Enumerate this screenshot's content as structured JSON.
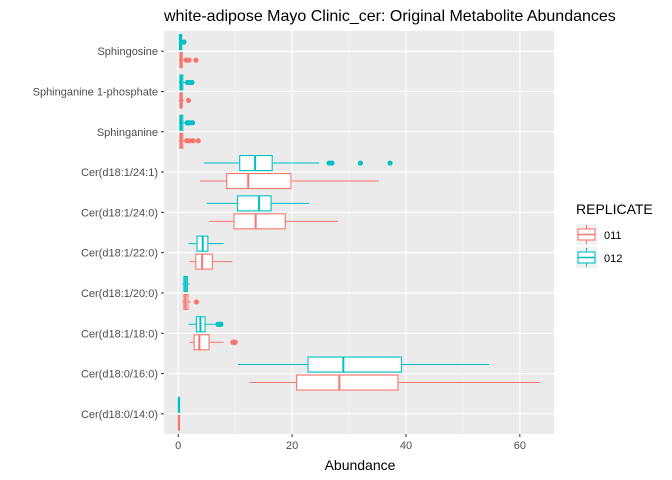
{
  "chart_data": {
    "type": "boxplot",
    "orientation": "horizontal",
    "title": "white-adipose Mayo Clinic_cer: Original Metabolite Abundances",
    "xlabel": "Abundance",
    "xlim": [
      -2.5,
      66
    ],
    "x_ticks": [
      0,
      20,
      40,
      60
    ],
    "x_tick_labels": [
      "0",
      "20",
      "40",
      "60"
    ],
    "grid": true,
    "legend_position": "right",
    "legend_title": "REPLICATE",
    "categories": [
      "Sphingosine",
      "Sphinganine 1-phosphate",
      "Sphinganine",
      "Cer(d18:1/24:1)",
      "Cer(d18:1/24:0)",
      "Cer(d18:1/22:0)",
      "Cer(d18:1/20:0)",
      "Cer(d18:1/18:0)",
      "Cer(d18:0/16:0)",
      "Cer(d18:0/14:0)"
    ],
    "series": [
      {
        "name": "011",
        "color": "#F8766D",
        "boxes": [
          {
            "min": 0.1,
            "q1": 0.3,
            "median": 0.5,
            "q3": 0.7,
            "max": 1.0,
            "outliers": [
              1.4,
              1.9,
              3.1
            ]
          },
          {
            "min": 0.1,
            "q1": 0.3,
            "median": 0.5,
            "q3": 0.7,
            "max": 1.0,
            "outliers": [
              1.8
            ]
          },
          {
            "min": 0.1,
            "q1": 0.3,
            "median": 0.5,
            "q3": 0.8,
            "max": 1.1,
            "outliers": [
              1.5,
              2.0,
              2.6,
              3.5
            ]
          },
          {
            "min": 3.8,
            "q1": 8.5,
            "median": 12.3,
            "q3": 19.8,
            "max": 35.2,
            "outliers": []
          },
          {
            "min": 5.5,
            "q1": 9.8,
            "median": 13.6,
            "q3": 18.8,
            "max": 28.1,
            "outliers": []
          },
          {
            "min": 2.0,
            "q1": 3.1,
            "median": 4.2,
            "q3": 6.0,
            "max": 9.5,
            "outliers": []
          },
          {
            "min": 0.7,
            "q1": 1.0,
            "median": 1.3,
            "q3": 1.7,
            "max": 2.2,
            "outliers": [
              3.2
            ]
          },
          {
            "min": 2.0,
            "q1": 2.8,
            "median": 3.7,
            "q3": 5.4,
            "max": 8.0,
            "outliers": [
              9.6,
              9.8,
              10.0
            ]
          },
          {
            "min": 12.5,
            "q1": 20.8,
            "median": 28.3,
            "q3": 38.6,
            "max": 63.5,
            "outliers": []
          },
          {
            "min": 0.0,
            "q1": 0.05,
            "median": 0.1,
            "q3": 0.15,
            "max": 0.2,
            "outliers": []
          }
        ]
      },
      {
        "name": "012",
        "color": "#00BFC4",
        "boxes": [
          {
            "min": 0.1,
            "q1": 0.2,
            "median": 0.4,
            "q3": 0.6,
            "max": 0.9,
            "outliers": [
              1.0
            ]
          },
          {
            "min": 0.1,
            "q1": 0.3,
            "median": 0.5,
            "q3": 0.8,
            "max": 1.2,
            "outliers": [
              1.6,
              2.0,
              2.4
            ]
          },
          {
            "min": 0.1,
            "q1": 0.3,
            "median": 0.5,
            "q3": 0.8,
            "max": 1.2,
            "outliers": [
              1.6,
              2.0,
              2.5
            ]
          },
          {
            "min": 4.5,
            "q1": 10.8,
            "median": 13.5,
            "q3": 16.5,
            "max": 24.8,
            "outliers": [
              26.5,
              27.0,
              32.0,
              37.2
            ]
          },
          {
            "min": 5.0,
            "q1": 10.4,
            "median": 14.2,
            "q3": 16.3,
            "max": 23.0,
            "outliers": []
          },
          {
            "min": 1.8,
            "q1": 3.3,
            "median": 4.3,
            "q3": 5.2,
            "max": 8.0,
            "outliers": []
          },
          {
            "min": 0.7,
            "q1": 1.0,
            "median": 1.3,
            "q3": 1.6,
            "max": 2.0,
            "outliers": []
          },
          {
            "min": 1.8,
            "q1": 3.2,
            "median": 3.9,
            "q3": 4.7,
            "max": 6.6,
            "outliers": [
              7.0,
              7.3,
              7.5
            ]
          },
          {
            "min": 10.5,
            "q1": 22.8,
            "median": 29.0,
            "q3": 39.2,
            "max": 54.6,
            "outliers": []
          },
          {
            "min": 0.0,
            "q1": 0.05,
            "median": 0.1,
            "q3": 0.15,
            "max": 0.2,
            "outliers": []
          }
        ]
      }
    ]
  },
  "colors": {
    "panel_background": "#EBEBEB",
    "grid_major": "#FFFFFF",
    "grid_minor": "#F5F5F5",
    "tick_text": "#4D4D4D"
  }
}
